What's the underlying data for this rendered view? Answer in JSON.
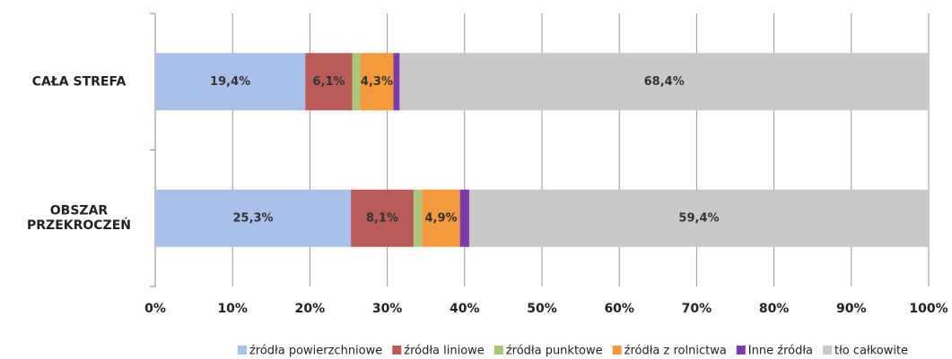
{
  "chart_data": {
    "type": "stacked-barh",
    "categories": [
      "CAŁA STREFA",
      "OBSZAR\nPRZEKROCZEŃ"
    ],
    "series": [
      {
        "name": "źródła powierzchniowe",
        "color": "#a9c1e8",
        "values": [
          19.4,
          25.3
        ],
        "value_labels": [
          "19,4%",
          "25,3%"
        ]
      },
      {
        "name": "źródła liniowe",
        "color": "#b85b59",
        "values": [
          6.1,
          8.1
        ],
        "value_labels": [
          "6,1%",
          "8,1%"
        ]
      },
      {
        "name": "źródła punktowe",
        "color": "#a8c77b",
        "values": [
          1.0,
          1.1
        ],
        "value_labels": [
          null,
          null
        ]
      },
      {
        "name": "źródła z rolnictwa",
        "color": "#f49a3c",
        "values": [
          4.3,
          4.9
        ],
        "value_labels": [
          "4,3%",
          "4,9%"
        ]
      },
      {
        "name": "Inne źródła",
        "color": "#7b3ba8",
        "values": [
          0.8,
          1.2
        ],
        "value_labels": [
          null,
          null
        ]
      },
      {
        "name": "tło całkowite",
        "color": "#c9c9c9",
        "values": [
          68.4,
          59.4
        ],
        "value_labels": [
          "68,4%",
          "59,4%"
        ]
      }
    ],
    "xlim": [
      0,
      100
    ],
    "xticks": [
      {
        "value": 0,
        "label": "0%"
      },
      {
        "value": 10,
        "label": "10%"
      },
      {
        "value": 20,
        "label": "20%"
      },
      {
        "value": 30,
        "label": "30%"
      },
      {
        "value": 40,
        "label": "40%"
      },
      {
        "value": 50,
        "label": "50%"
      },
      {
        "value": 60,
        "label": "60%"
      },
      {
        "value": 70,
        "label": "70%"
      },
      {
        "value": 80,
        "label": "80%"
      },
      {
        "value": 90,
        "label": "90%"
      },
      {
        "value": 100,
        "label": "100%"
      }
    ],
    "grid": true,
    "legend": "bottom"
  }
}
